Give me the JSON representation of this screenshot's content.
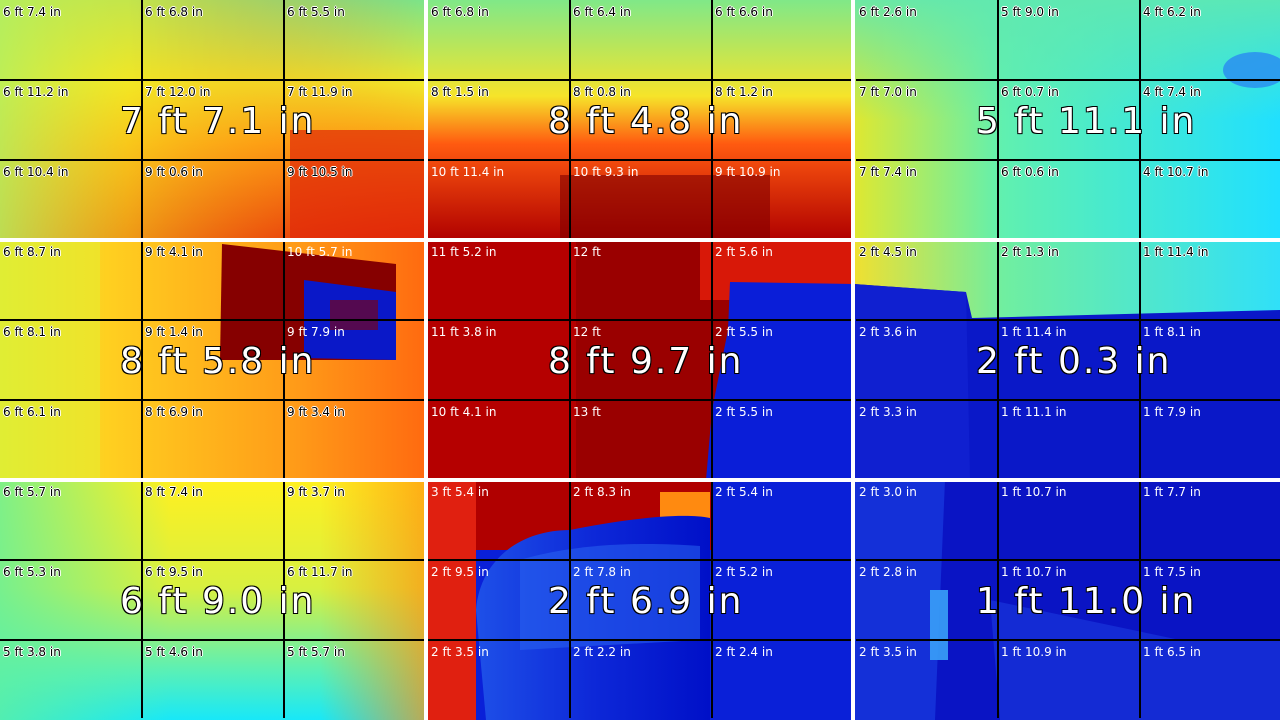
{
  "panels": [
    {
      "id": "top-left",
      "big": "7 ft 7.1 in",
      "cells": [
        "6 ft 7.4 in",
        "6 ft 6.8 in",
        "6 ft 5.5 in",
        "6 ft 11.2 in",
        "7 ft 12.0 in",
        "7 ft 11.9 in",
        "6 ft 10.4 in",
        "9 ft 0.6 in",
        "9 ft 10.5 in"
      ],
      "label_style": [
        "outline",
        "outline",
        "outline",
        "outline",
        "outline",
        "outline",
        "outline",
        "outline",
        "outline"
      ]
    },
    {
      "id": "top-middle",
      "big": "8 ft 4.8 in",
      "cells": [
        "6 ft 6.8 in",
        "6 ft 6.4 in",
        "6 ft 6.6 in",
        "8 ft 1.5 in",
        "8 ft 0.8 in",
        "8 ft 1.2 in",
        "10 ft 11.4 in",
        "10 ft 9.3 in",
        "9 ft 10.9 in"
      ],
      "label_style": [
        "outline",
        "outline",
        "outline",
        "outline",
        "outline",
        "outline",
        "light",
        "light",
        "light"
      ]
    },
    {
      "id": "top-right",
      "big": "5 ft 11.1 in",
      "cells": [
        "6 ft 2.6 in",
        "5 ft 9.0 in",
        "4 ft 6.2 in",
        "7 ft 7.0 in",
        "6 ft 0.7 in",
        "4 ft 7.4 in",
        "7 ft 7.4 in",
        "6 ft 0.6 in",
        "4 ft 10.7 in"
      ],
      "label_style": [
        "outline",
        "outline",
        "outline",
        "outline",
        "outline",
        "outline",
        "outline",
        "outline",
        "outline"
      ]
    },
    {
      "id": "middle-left",
      "big": "8 ft 5.8 in",
      "cells": [
        "6 ft 8.7 in",
        "9 ft 4.1 in",
        "10 ft 5.7 in",
        "6 ft 8.1 in",
        "9 ft 1.4 in",
        "9 ft 7.9 in",
        "6 ft 6.1 in",
        "8 ft 6.9 in",
        "9 ft 3.4 in"
      ],
      "label_style": [
        "outline",
        "outline",
        "light",
        "outline",
        "outline",
        "light",
        "outline",
        "outline",
        "outline"
      ]
    },
    {
      "id": "center",
      "big": "8 ft 9.7 in",
      "cells": [
        "11 ft 5.2 in",
        "12 ft",
        "2 ft 5.6 in",
        "11 ft 3.8 in",
        "12 ft",
        "2 ft 5.5 in",
        "10 ft 4.1 in",
        "13 ft",
        "2 ft 5.5 in"
      ],
      "label_style": [
        "light",
        "light",
        "light",
        "light",
        "light",
        "light",
        "light",
        "light",
        "light"
      ]
    },
    {
      "id": "middle-right",
      "big": "2 ft 0.3 in",
      "cells": [
        "2 ft 4.5 in",
        "2 ft 1.3 in",
        "1 ft 11.4 in",
        "2 ft 3.6 in",
        "1 ft 11.4 in",
        "1 ft 8.1 in",
        "2 ft 3.3 in",
        "1 ft 11.1 in",
        "1 ft 7.9 in"
      ],
      "label_style": [
        "outline",
        "outline",
        "outline",
        "light",
        "light",
        "light",
        "light",
        "light",
        "light"
      ]
    },
    {
      "id": "bottom-left",
      "big": "6 ft 9.0 in",
      "cells": [
        "6 ft 5.7 in",
        "8 ft 7.4 in",
        "9 ft 3.7 in",
        "6 ft 5.3 in",
        "6 ft 9.5 in",
        "6 ft 11.7 in",
        "5 ft 3.8 in",
        "5 ft 4.6 in",
        "5 ft 5.7 in"
      ],
      "label_style": [
        "outline",
        "outline",
        "outline",
        "outline",
        "outline",
        "outline",
        "outline",
        "outline",
        "outline"
      ]
    },
    {
      "id": "bottom-middle",
      "big": "2 ft 6.9 in",
      "cells": [
        "3 ft 5.4 in",
        "2 ft 8.3 in",
        "2 ft 5.4 in",
        "2 ft 9.5 in",
        "2 ft 7.8 in",
        "2 ft 5.2 in",
        "2 ft 3.5 in",
        "2 ft 2.2 in",
        "2 ft 2.4 in"
      ],
      "label_style": [
        "light",
        "light",
        "light",
        "light",
        "light",
        "light",
        "light",
        "light",
        "light"
      ]
    },
    {
      "id": "bottom-right",
      "big": "1 ft 11.0 in",
      "cells": [
        "2 ft 3.0 in",
        "1 ft 10.7 in",
        "1 ft 7.7 in",
        "2 ft 2.8 in",
        "1 ft 10.7 in",
        "1 ft 7.5 in",
        "2 ft 3.5 in",
        "1 ft 10.9 in",
        "1 ft 6.5 in"
      ],
      "label_style": [
        "light",
        "light",
        "light",
        "light",
        "light",
        "light",
        "light",
        "light",
        "light"
      ]
    }
  ],
  "colors": {
    "near": "#0000c8",
    "mid": "#00e6ff",
    "far_warm": "#ffe600",
    "farthest": "#8b0000",
    "grid": "#000000",
    "separator": "#ffffff"
  }
}
